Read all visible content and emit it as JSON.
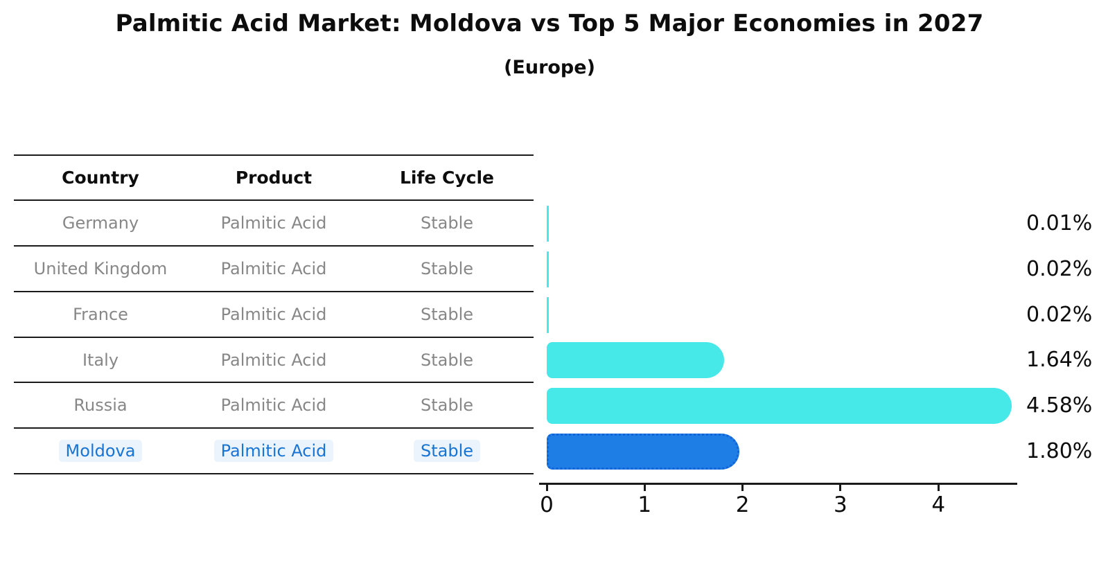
{
  "header": {
    "title": "Palmitic Acid Market: Moldova vs Top 5 Major Economies in 2027",
    "subtitle": "(Europe)"
  },
  "table": {
    "headers": [
      "Country",
      "Product",
      "Life Cycle"
    ],
    "rows": [
      {
        "country": "Germany",
        "product": "Palmitic Acid",
        "life_cycle": "Stable"
      },
      {
        "country": "United Kingdom",
        "product": "Palmitic Acid",
        "life_cycle": "Stable"
      },
      {
        "country": "France",
        "product": "Palmitic Acid",
        "life_cycle": "Stable"
      },
      {
        "country": "Italy",
        "product": "Palmitic Acid",
        "life_cycle": "Stable"
      },
      {
        "country": "Russia",
        "product": "Palmitic Acid",
        "life_cycle": "Stable"
      },
      {
        "country": "Moldova",
        "product": "Palmitic Acid",
        "life_cycle": "Stable"
      }
    ],
    "highlight_row": "Moldova"
  },
  "chart_data": {
    "type": "bar",
    "orientation": "horizontal",
    "title": "Palmitic Acid Market: Moldova vs Top 5 Major Economies in 2027",
    "subtitle": "(Europe)",
    "categories": [
      "Germany",
      "United Kingdom",
      "France",
      "Italy",
      "Russia",
      "Moldova"
    ],
    "values": [
      0.01,
      0.02,
      0.02,
      1.64,
      4.58,
      1.8
    ],
    "value_labels": [
      "0.01%",
      "0.02%",
      "0.02%",
      "1.64%",
      "4.58%",
      "1.80%"
    ],
    "xticks": [
      0,
      1,
      2,
      3,
      4
    ],
    "xlim": [
      0,
      4.8
    ],
    "grid": false,
    "legend": false,
    "highlight_index": 5,
    "colors": {
      "bar": "#46e8e8",
      "highlight_bar": "#1e7ee6",
      "highlight_border": "#1263d8",
      "highlight_text": "#1874d2",
      "table_text": "#878787",
      "heading_text": "#0d0d0d",
      "axis": "#1a1a1a"
    }
  }
}
